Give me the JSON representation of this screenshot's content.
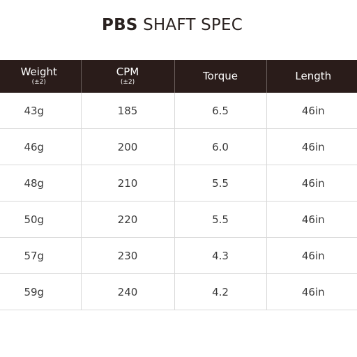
{
  "title": {
    "brand": "PBS",
    "rest": "SHAFT SPEC"
  },
  "colors": {
    "header_bg": "#2a1c1a",
    "header_text": "#ffffff",
    "grid_line": "#d9d9d9"
  },
  "table": {
    "headers": [
      {
        "label": "Weight",
        "sub": "(±2)"
      },
      {
        "label": "CPM",
        "sub": "(±2)"
      },
      {
        "label": "Torque",
        "sub": ""
      },
      {
        "label": "Length",
        "sub": ""
      }
    ],
    "rows": [
      {
        "weight": "43g",
        "cpm": "185",
        "torque": "6.5",
        "length": "46in"
      },
      {
        "weight": "46g",
        "cpm": "200",
        "torque": "6.0",
        "length": "46in"
      },
      {
        "weight": "48g",
        "cpm": "210",
        "torque": "5.5",
        "length": "46in"
      },
      {
        "weight": "50g",
        "cpm": "220",
        "torque": "5.5",
        "length": "46in"
      },
      {
        "weight": "57g",
        "cpm": "230",
        "torque": "4.3",
        "length": "46in"
      },
      {
        "weight": "59g",
        "cpm": "240",
        "torque": "4.2",
        "length": "46in"
      }
    ]
  }
}
